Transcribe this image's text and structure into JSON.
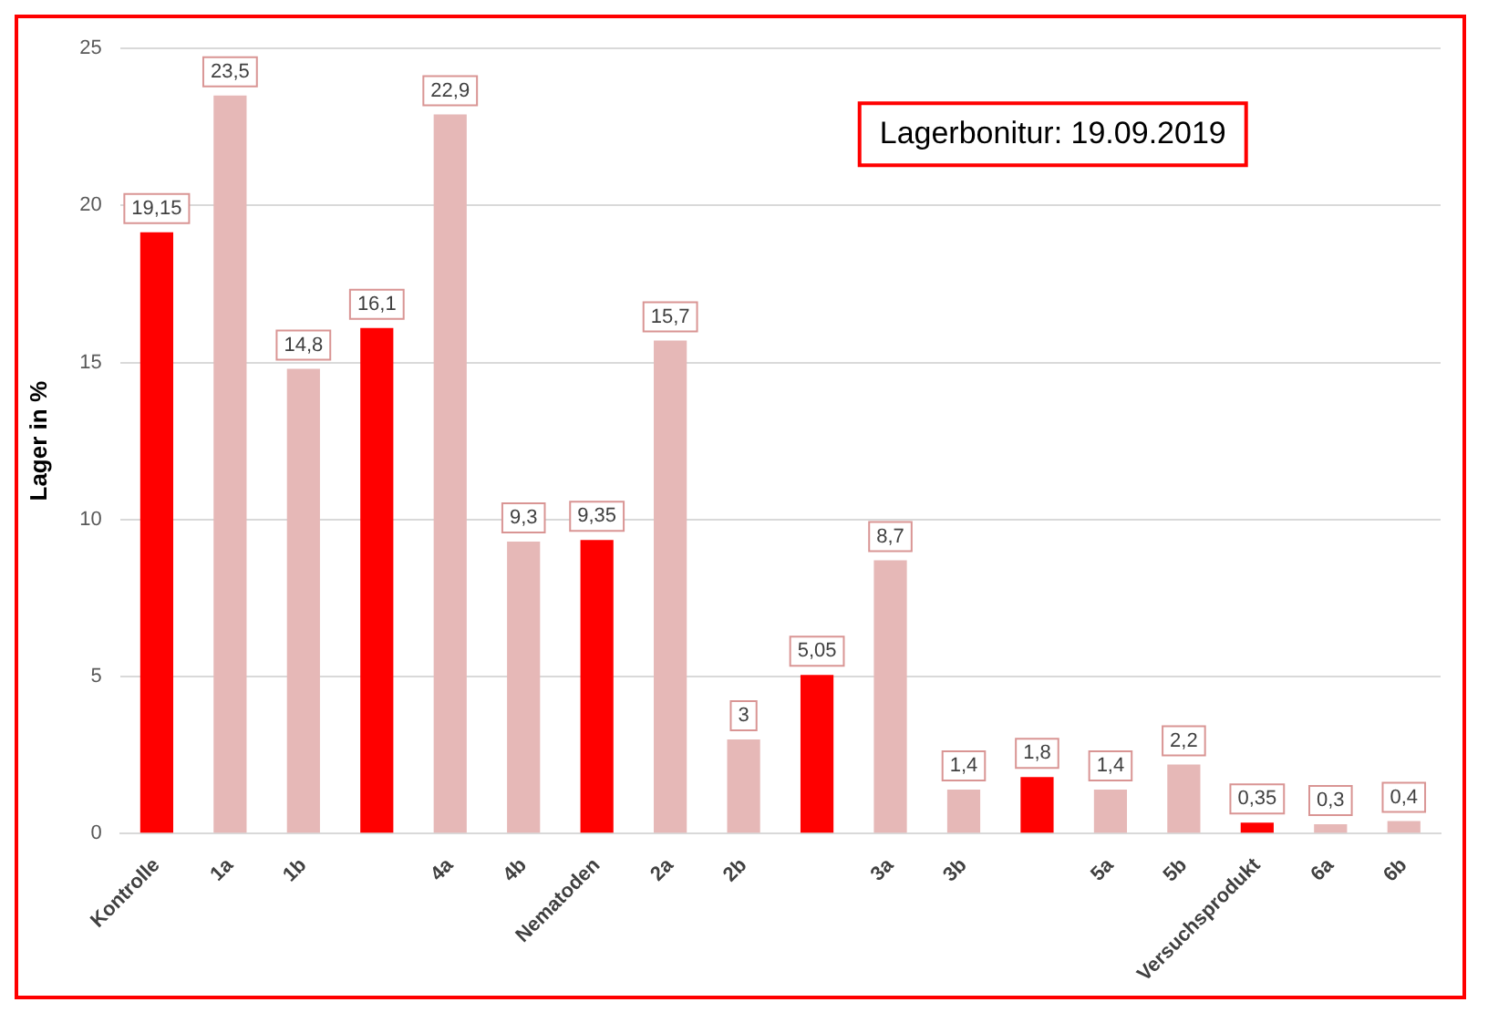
{
  "chart_data": {
    "type": "bar",
    "ylabel": "Lager in %",
    "categories": [
      "Kontrolle",
      "1a",
      "1b",
      null,
      "4a",
      "4b",
      "Nematoden",
      "2a",
      "2b",
      null,
      "3a",
      "3b",
      null,
      "5a",
      "5b",
      "Versuchsprodukt",
      "6a",
      "6b"
    ],
    "values": [
      19.15,
      23.5,
      14.8,
      16.1,
      22.9,
      9.3,
      9.35,
      15.7,
      3,
      5.05,
      8.7,
      1.4,
      1.8,
      1.4,
      2.2,
      0.35,
      0.3,
      0.4
    ],
    "colors": [
      "#ff0000",
      "#e6b8b7",
      "#e6b8b7",
      "#ff0000",
      "#e6b8b7",
      "#e6b8b7",
      "#ff0000",
      "#e6b8b7",
      "#e6b8b7",
      "#ff0000",
      "#e6b8b7",
      "#e6b8b7",
      "#ff0000",
      "#e6b8b7",
      "#e6b8b7",
      "#ff0000",
      "#e6b8b7",
      "#e6b8b7"
    ],
    "value_labels": [
      "19,15",
      "23,5",
      "14,8",
      "16,1",
      "22,9",
      "9,3",
      "9,35",
      "15,7",
      "3",
      "5,05",
      "8,7",
      "1,4",
      "1,8",
      "1,4",
      "2,2",
      "0,35",
      "0,3",
      "0,4"
    ],
    "ylim": [
      0,
      25
    ],
    "yticks": [
      0,
      5,
      10,
      15,
      20,
      25
    ],
    "grid": "y",
    "legend": false,
    "annotations": [
      "Lagerbonitur: 19.09.2019"
    ]
  }
}
